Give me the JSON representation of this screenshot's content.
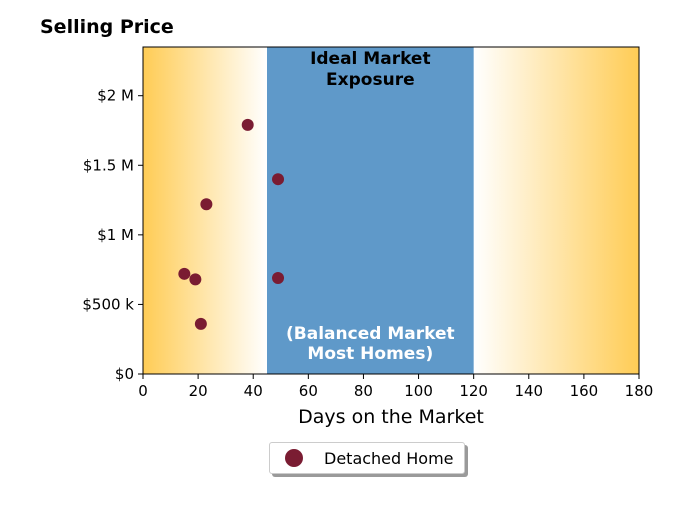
{
  "chart_data": {
    "type": "scatter",
    "title": "Selling Price",
    "xlabel": "Days on the Market",
    "ylabel": "",
    "xlim": [
      0,
      180
    ],
    "ylim": [
      0,
      2350000
    ],
    "xticks": [
      0,
      20,
      40,
      60,
      80,
      100,
      120,
      140,
      160,
      180
    ],
    "xtick_labels": [
      "0",
      "20",
      "40",
      "60",
      "80",
      "100",
      "120",
      "140",
      "160",
      "180"
    ],
    "yticks": [
      0,
      500000,
      1000000,
      1500000,
      2000000
    ],
    "ytick_labels": [
      "$0",
      "$500 k",
      "$1 M",
      "$1.5 M",
      "$2 M"
    ],
    "series": [
      {
        "name": "Detached Home",
        "color": "#7a1c32",
        "points": [
          {
            "x": 15,
            "y": 720000
          },
          {
            "x": 19,
            "y": 680000
          },
          {
            "x": 21,
            "y": 360000
          },
          {
            "x": 23,
            "y": 1220000
          },
          {
            "x": 38,
            "y": 1790000
          },
          {
            "x": 49,
            "y": 1400000
          },
          {
            "x": 49,
            "y": 690000
          }
        ]
      }
    ],
    "ideal_band": {
      "x_range": [
        45,
        120
      ],
      "color": "#5f99c9",
      "top_label": "Ideal Market\nExposure",
      "bottom_label": "(Balanced Market\nMost Homes)"
    },
    "gradient_color": "#ffcc55",
    "legend": {
      "placement": "bottom-center",
      "label": "Detached Home"
    },
    "grid": false
  }
}
